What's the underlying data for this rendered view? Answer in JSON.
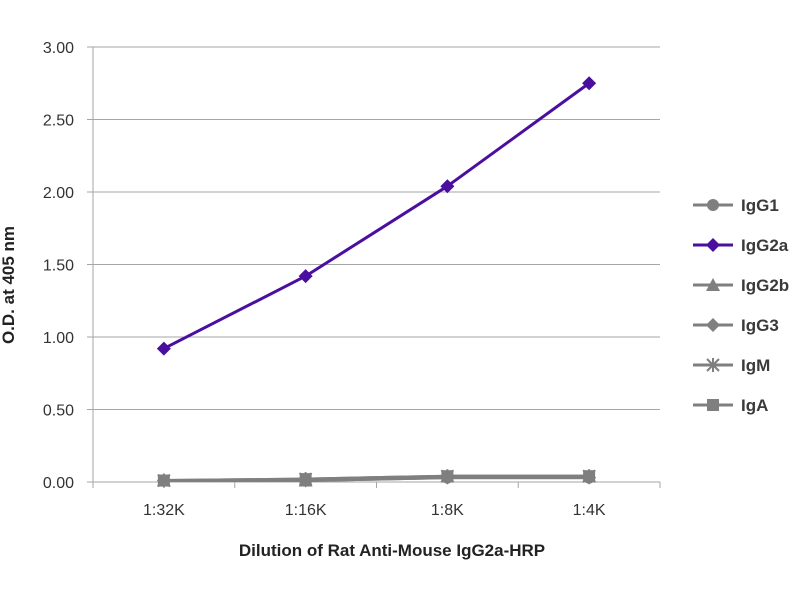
{
  "chart_data": {
    "type": "line",
    "title": "",
    "xlabel": "Dilution of Rat Anti-Mouse IgG2a-HRP",
    "ylabel": "O.D. at 405 nm",
    "categories": [
      "1:32K",
      "1:16K",
      "1:8K",
      "1:4K"
    ],
    "ylim": [
      0,
      3
    ],
    "yticks": [
      "0.00",
      "0.50",
      "1.00",
      "1.50",
      "2.00",
      "2.50",
      "3.00"
    ],
    "ytick_values": [
      0,
      0.5,
      1,
      1.5,
      2,
      2.5,
      3
    ],
    "grid": true,
    "legend_position": "right",
    "series": [
      {
        "name": "IgG1",
        "values": [
          0.01,
          0.01,
          0.03,
          0.03
        ],
        "color": "#7f7f7f",
        "marker": "circle"
      },
      {
        "name": "IgG2a",
        "values": [
          0.92,
          1.42,
          2.04,
          2.75
        ],
        "color": "#4b0fa0",
        "marker": "diamond"
      },
      {
        "name": "IgG2b",
        "values": [
          0.01,
          0.01,
          0.04,
          0.04
        ],
        "color": "#7f7f7f",
        "marker": "triangle"
      },
      {
        "name": "IgG3",
        "values": [
          0.01,
          0.01,
          0.03,
          0.03
        ],
        "color": "#7f7f7f",
        "marker": "diamond"
      },
      {
        "name": "IgM",
        "values": [
          0.01,
          0.02,
          0.04,
          0.04
        ],
        "color": "#7f7f7f",
        "marker": "star"
      },
      {
        "name": "IgA",
        "values": [
          0.01,
          0.02,
          0.04,
          0.04
        ],
        "color": "#7f7f7f",
        "marker": "square"
      }
    ]
  }
}
